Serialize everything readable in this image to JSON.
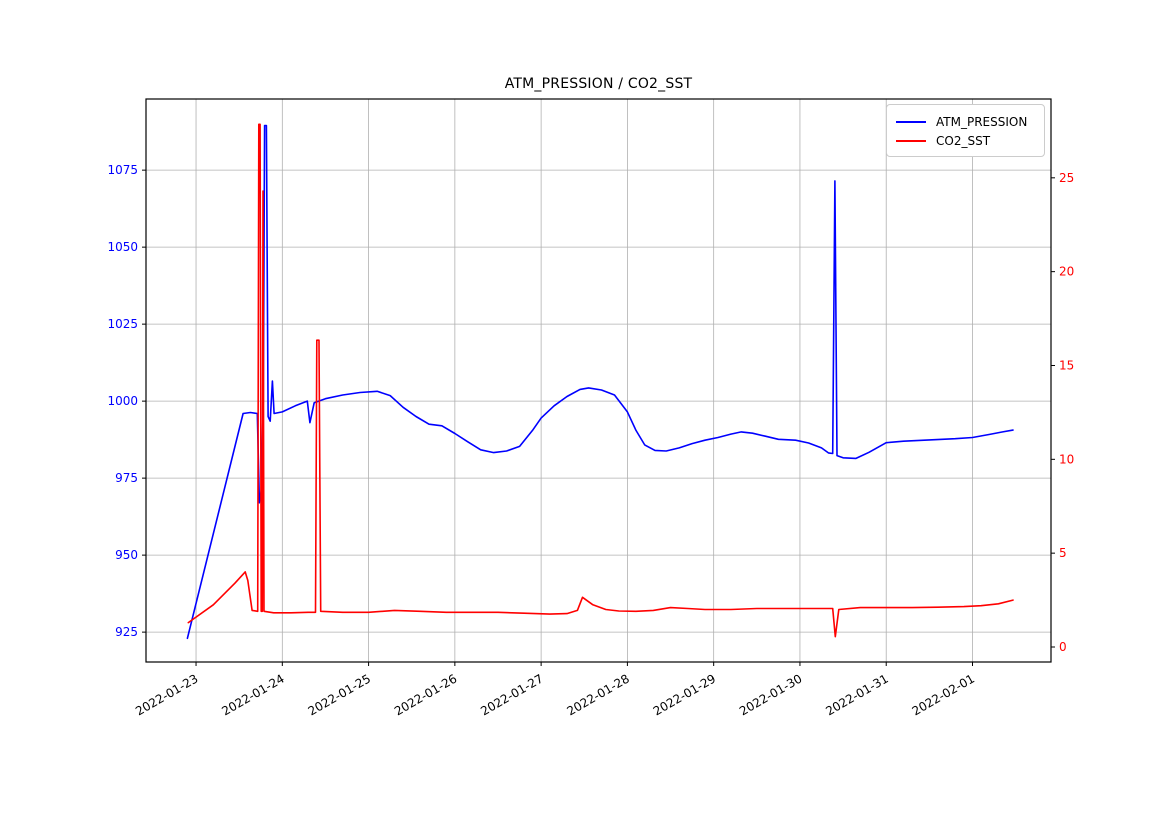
{
  "figure": {
    "background": "#ffffff"
  },
  "chart_data": {
    "type": "line",
    "title": "ATM_PRESSION / CO2_SST",
    "grid": true,
    "grid_color": "#b0b0b0",
    "x_axis": {
      "unit": "days since 2022-01-23 00:00",
      "xlim": [
        -0.58,
        9.91
      ],
      "tick_positions": [
        0,
        1,
        2,
        3,
        4,
        5,
        6,
        7,
        8,
        9
      ],
      "tick_labels": [
        "2022-01-23",
        "2022-01-24",
        "2022-01-25",
        "2022-01-26",
        "2022-01-27",
        "2022-01-28",
        "2022-01-29",
        "2022-01-30",
        "2022-01-31",
        "2022-02-01"
      ],
      "tick_label_rotation_deg": 30,
      "tick_label_color": "#000000"
    },
    "y_axis_left": {
      "label_for_series": "ATM_PRESSION",
      "color": "#0000ff",
      "ylim": [
        915.3,
        1098.1
      ],
      "ticks": [
        925,
        950,
        975,
        1000,
        1025,
        1050,
        1075
      ]
    },
    "y_axis_right": {
      "label_for_series": "CO2_SST",
      "color": "#ff0000",
      "ylim": [
        -0.8,
        29.2
      ],
      "ticks": [
        0,
        5,
        10,
        15,
        20,
        25
      ]
    },
    "legend": {
      "position": "upper right",
      "entries": [
        {
          "label": "ATM_PRESSION",
          "color": "#0000ff"
        },
        {
          "label": "CO2_SST",
          "color": "#ff0000"
        }
      ]
    },
    "series": [
      {
        "name": "ATM_PRESSION",
        "axis": "left",
        "color": "#0000ff",
        "points": [
          [
            -0.1,
            923
          ],
          [
            0.545,
            996
          ],
          [
            0.63,
            996.3
          ],
          [
            0.71,
            996
          ],
          [
            0.735,
            967
          ],
          [
            0.755,
            971
          ],
          [
            0.78,
            1000
          ],
          [
            0.795,
            1089.5
          ],
          [
            0.815,
            1089.5
          ],
          [
            0.835,
            995
          ],
          [
            0.86,
            993.5
          ],
          [
            0.885,
            1006.5
          ],
          [
            0.905,
            996
          ],
          [
            1.0,
            996.5
          ],
          [
            1.15,
            998.5
          ],
          [
            1.29,
            1000
          ],
          [
            1.32,
            993
          ],
          [
            1.37,
            999.5
          ],
          [
            1.5,
            1000.8
          ],
          [
            1.7,
            1002
          ],
          [
            1.9,
            1002.8
          ],
          [
            2.1,
            1003.2
          ],
          [
            2.25,
            1001.8
          ],
          [
            2.4,
            998
          ],
          [
            2.55,
            995
          ],
          [
            2.7,
            992.5
          ],
          [
            2.85,
            992
          ],
          [
            3.0,
            989.5
          ],
          [
            3.15,
            986.8
          ],
          [
            3.3,
            984.2
          ],
          [
            3.45,
            983.3
          ],
          [
            3.6,
            983.8
          ],
          [
            3.75,
            985.3
          ],
          [
            3.9,
            990.5
          ],
          [
            4.0,
            994.5
          ],
          [
            4.15,
            998.5
          ],
          [
            4.3,
            1001.5
          ],
          [
            4.45,
            1003.8
          ],
          [
            4.55,
            1004.3
          ],
          [
            4.7,
            1003.6
          ],
          [
            4.85,
            1002
          ],
          [
            5.0,
            996.5
          ],
          [
            5.1,
            990.5
          ],
          [
            5.2,
            985.8
          ],
          [
            5.32,
            984
          ],
          [
            5.45,
            983.8
          ],
          [
            5.6,
            984.8
          ],
          [
            5.75,
            986.2
          ],
          [
            5.9,
            987.3
          ],
          [
            6.05,
            988.2
          ],
          [
            6.2,
            989.3
          ],
          [
            6.32,
            990
          ],
          [
            6.45,
            989.6
          ],
          [
            6.6,
            988.6
          ],
          [
            6.75,
            987.6
          ],
          [
            6.95,
            987.3
          ],
          [
            7.1,
            986.4
          ],
          [
            7.25,
            984.8
          ],
          [
            7.33,
            983.2
          ],
          [
            7.38,
            983
          ],
          [
            7.405,
            1071.5
          ],
          [
            7.43,
            982.3
          ],
          [
            7.5,
            981.6
          ],
          [
            7.65,
            981.4
          ],
          [
            7.8,
            983.4
          ],
          [
            8.0,
            986.5
          ],
          [
            8.2,
            987
          ],
          [
            8.5,
            987.4
          ],
          [
            8.8,
            987.8
          ],
          [
            9.0,
            988.2
          ],
          [
            9.2,
            989.2
          ],
          [
            9.35,
            990
          ],
          [
            9.47,
            990.6
          ]
        ]
      },
      {
        "name": "CO2_SST",
        "axis": "right",
        "color": "#ff0000",
        "points": [
          [
            -0.09,
            1.3
          ],
          [
            0.2,
            2.25
          ],
          [
            0.45,
            3.4
          ],
          [
            0.57,
            4.0
          ],
          [
            0.6,
            3.55
          ],
          [
            0.65,
            1.95
          ],
          [
            0.715,
            1.9
          ],
          [
            0.728,
            27.85
          ],
          [
            0.742,
            27.85
          ],
          [
            0.755,
            1.9
          ],
          [
            0.768,
            1.9
          ],
          [
            0.776,
            24.3
          ],
          [
            0.788,
            1.9
          ],
          [
            0.9,
            1.82
          ],
          [
            1.1,
            1.82
          ],
          [
            1.3,
            1.85
          ],
          [
            1.385,
            1.85
          ],
          [
            1.4,
            16.35
          ],
          [
            1.425,
            16.35
          ],
          [
            1.445,
            1.9
          ],
          [
            1.7,
            1.85
          ],
          [
            2.0,
            1.85
          ],
          [
            2.3,
            1.95
          ],
          [
            2.6,
            1.9
          ],
          [
            2.9,
            1.85
          ],
          [
            3.2,
            1.85
          ],
          [
            3.5,
            1.85
          ],
          [
            3.8,
            1.8
          ],
          [
            4.1,
            1.75
          ],
          [
            4.3,
            1.78
          ],
          [
            4.42,
            1.95
          ],
          [
            4.48,
            2.65
          ],
          [
            4.6,
            2.25
          ],
          [
            4.75,
            2.0
          ],
          [
            4.9,
            1.92
          ],
          [
            5.1,
            1.9
          ],
          [
            5.3,
            1.95
          ],
          [
            5.5,
            2.1
          ],
          [
            5.7,
            2.05
          ],
          [
            5.9,
            2.0
          ],
          [
            6.2,
            2.0
          ],
          [
            6.5,
            2.05
          ],
          [
            6.8,
            2.05
          ],
          [
            7.1,
            2.05
          ],
          [
            7.3,
            2.05
          ],
          [
            7.38,
            2.05
          ],
          [
            7.41,
            0.55
          ],
          [
            7.45,
            2.0
          ],
          [
            7.7,
            2.1
          ],
          [
            8.0,
            2.1
          ],
          [
            8.3,
            2.1
          ],
          [
            8.6,
            2.12
          ],
          [
            8.9,
            2.15
          ],
          [
            9.1,
            2.2
          ],
          [
            9.3,
            2.3
          ],
          [
            9.47,
            2.5
          ]
        ]
      }
    ]
  }
}
